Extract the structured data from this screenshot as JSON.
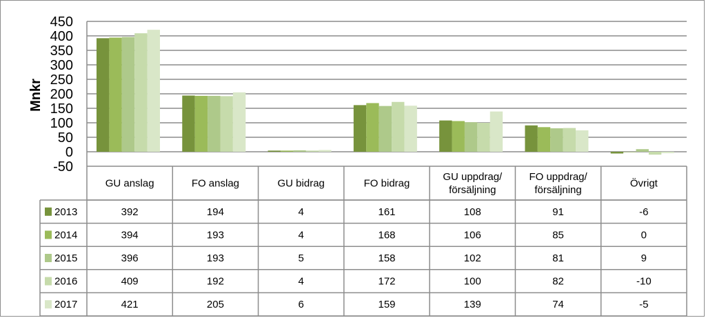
{
  "chart_data": {
    "type": "bar",
    "ylabel": "Mnkr",
    "ylim": [
      -50,
      450
    ],
    "yticks": [
      450,
      400,
      350,
      300,
      250,
      200,
      150,
      100,
      50,
      0,
      -50
    ],
    "yticks_text": [
      "450",
      "400",
      "350",
      "300",
      "250",
      "200",
      "150",
      "100",
      "50",
      "0",
      "-50"
    ],
    "grid": true,
    "legend": "data-table",
    "categories": [
      "GU anslag",
      "FO anslag",
      "GU bidrag",
      "FO bidrag",
      "GU uppdrag/försäljning",
      "FO uppdrag/försäljning",
      "Övrigt"
    ],
    "category_labels": [
      [
        "GU anslag"
      ],
      [
        "FO anslag"
      ],
      [
        "GU bidrag"
      ],
      [
        "FO bidrag"
      ],
      [
        "GU uppdrag/",
        "försäljning"
      ],
      [
        "FO uppdrag/",
        "försäljning"
      ],
      [
        "Övrigt"
      ]
    ],
    "series": [
      {
        "name": "2013",
        "color": "#77933c",
        "values": [
          392,
          194,
          4,
          161,
          108,
          91,
          -6
        ]
      },
      {
        "name": "2014",
        "color": "#9bbb59",
        "values": [
          394,
          193,
          4,
          168,
          106,
          85,
          0
        ]
      },
      {
        "name": "2015",
        "color": "#aec98a",
        "values": [
          396,
          193,
          5,
          158,
          102,
          81,
          9
        ]
      },
      {
        "name": "2016",
        "color": "#c6dbab",
        "values": [
          409,
          192,
          4,
          172,
          100,
          82,
          -10
        ]
      },
      {
        "name": "2017",
        "color": "#d9e7c8",
        "values": [
          421,
          205,
          6,
          159,
          139,
          74,
          -5
        ]
      }
    ]
  }
}
